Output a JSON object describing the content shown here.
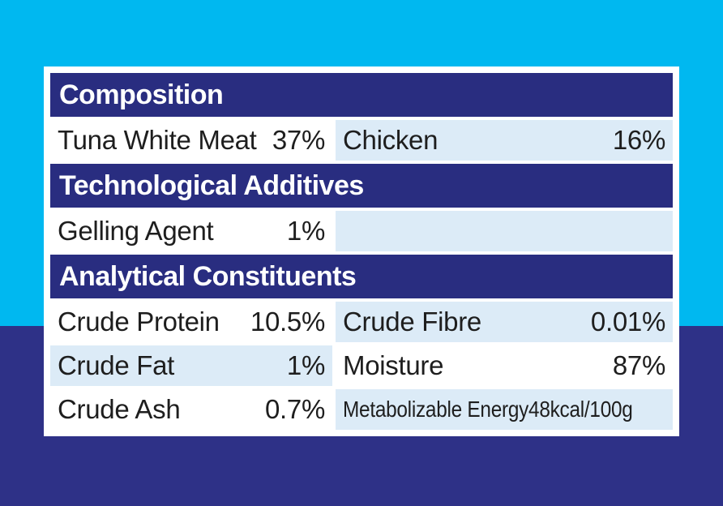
{
  "colors": {
    "cyan_top": "#00b8f0",
    "navy_bottom": "#2e3187",
    "header_navy": "#292d80",
    "row_alt": "#dcebf7",
    "text_dark": "#1e1e1e",
    "panel_white": "#ffffff"
  },
  "panel": {
    "sections": [
      {
        "title": "Composition",
        "rows": [
          {
            "left": {
              "label": "Tuna White Meat",
              "value": "37%"
            },
            "right": {
              "label": "Chicken",
              "value": "16%"
            }
          }
        ]
      },
      {
        "title": "Technological Additives",
        "rows": [
          {
            "left": {
              "label": "Gelling Agent",
              "value": "1%"
            },
            "right": {
              "label": "",
              "value": ""
            }
          }
        ]
      },
      {
        "title": "Analytical Constituents",
        "rows": [
          {
            "left": {
              "label": "Crude Protein",
              "value": "10.5%"
            },
            "right": {
              "label": "Crude Fibre",
              "value": "0.01%"
            }
          },
          {
            "left": {
              "label": "Crude Fat",
              "value": "1%"
            },
            "right": {
              "label": "Moisture",
              "value": "87%"
            }
          },
          {
            "left": {
              "label": "Crude Ash",
              "value": "0.7%"
            },
            "right": {
              "label": "Metabolizable Energy",
              "value": "48kcal/100g"
            }
          }
        ]
      }
    ]
  }
}
